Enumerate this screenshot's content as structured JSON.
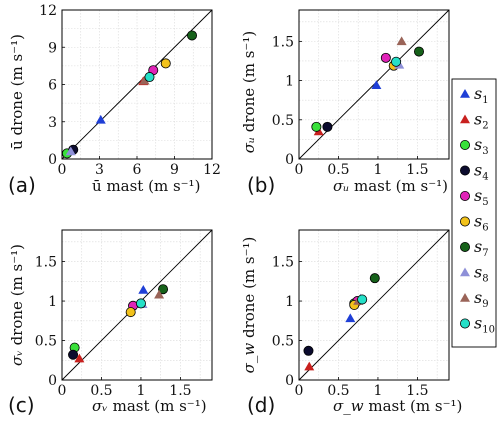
{
  "series_styles": [
    {
      "name": "s",
      "sub": "1",
      "marker": "triangle",
      "color": "#1f3fd6"
    },
    {
      "name": "s",
      "sub": "2",
      "marker": "triangle",
      "color": "#c8201e"
    },
    {
      "name": "s",
      "sub": "3",
      "marker": "circle",
      "color": "#39e03a"
    },
    {
      "name": "s",
      "sub": "4",
      "marker": "circle",
      "color": "#0b0b2e"
    },
    {
      "name": "s",
      "sub": "5",
      "marker": "circle",
      "color": "#e023b8"
    },
    {
      "name": "s",
      "sub": "6",
      "marker": "circle",
      "color": "#f2c21b"
    },
    {
      "name": "s",
      "sub": "7",
      "marker": "circle",
      "color": "#16611a"
    },
    {
      "name": "s",
      "sub": "8",
      "marker": "triangle",
      "color": "#8e90d8"
    },
    {
      "name": "s",
      "sub": "9",
      "marker": "triangle",
      "color": "#9a6458"
    },
    {
      "name": "s",
      "sub": "10",
      "marker": "circle",
      "color": "#25e0c8"
    }
  ],
  "chart_data": [
    {
      "panel": "(a)",
      "type": "scatter",
      "xlabel": {
        "prefix": "ū",
        "italic": "",
        "suffix": " mast (m s⁻¹)"
      },
      "ylabel": {
        "prefix": "ū",
        "italic": "",
        "suffix": " drone (m s⁻¹)"
      },
      "xlim": [
        0,
        12
      ],
      "ylim": [
        0,
        12
      ],
      "xticks": [
        0,
        3,
        6,
        9,
        12
      ],
      "yticks": [
        0,
        3,
        6,
        9,
        12
      ],
      "xtick_labels": [
        "0",
        "3",
        "6",
        "9",
        "12"
      ],
      "ytick_labels": [
        "0",
        "3",
        "6",
        "9",
        "12"
      ],
      "grid": true,
      "reference_line": "1:1",
      "points": [
        [
          3.1,
          3.15
        ],
        [
          6.5,
          6.25
        ],
        [
          0.4,
          0.45
        ],
        [
          0.9,
          0.75
        ],
        [
          7.3,
          7.15
        ],
        [
          8.3,
          7.7
        ],
        [
          10.4,
          9.95
        ],
        [
          0.7,
          0.6
        ],
        [
          6.6,
          6.3
        ],
        [
          7.0,
          6.6
        ]
      ]
    },
    {
      "panel": "(b)",
      "type": "scatter",
      "xlabel": {
        "prefix": "",
        "italic": "σᵤ",
        "suffix": " mast (m s⁻¹)"
      },
      "ylabel": {
        "prefix": "",
        "italic": "σᵤ",
        "suffix": " drone (m s⁻¹)"
      },
      "xlim": [
        0,
        1.9
      ],
      "ylim": [
        0,
        1.9
      ],
      "xticks": [
        0,
        0.5,
        1,
        1.5
      ],
      "yticks": [
        0,
        0.5,
        1,
        1.5
      ],
      "xtick_labels": [
        "0",
        "0.5",
        "1",
        "1.5"
      ],
      "ytick_labels": [
        "0",
        "0.5",
        "1",
        "1.5"
      ],
      "grid": true,
      "reference_line": "1:1",
      "points": [
        [
          0.98,
          0.94
        ],
        [
          0.25,
          0.35
        ],
        [
          0.22,
          0.41
        ],
        [
          0.36,
          0.41
        ],
        [
          1.1,
          1.29
        ],
        [
          1.2,
          1.19
        ],
        [
          1.52,
          1.37
        ],
        [
          1.27,
          1.2
        ],
        [
          1.3,
          1.5
        ],
        [
          1.23,
          1.24
        ]
      ]
    },
    {
      "panel": "(c)",
      "type": "scatter",
      "xlabel": {
        "prefix": "",
        "italic": "σᵥ",
        "suffix": " mast (m s⁻¹)"
      },
      "ylabel": {
        "prefix": "",
        "italic": "σᵥ",
        "suffix": " drone (m s⁻¹)"
      },
      "xlim": [
        0,
        1.9
      ],
      "ylim": [
        0,
        1.9
      ],
      "xticks": [
        0,
        0.5,
        1,
        1.5
      ],
      "yticks": [
        0,
        0.5,
        1,
        1.5
      ],
      "xtick_labels": [
        "0",
        "0.5",
        "1",
        "1.5"
      ],
      "ytick_labels": [
        "0",
        "0.5",
        "1",
        "1.5"
      ],
      "grid": true,
      "reference_line": "1:1",
      "points": [
        [
          1.03,
          1.14
        ],
        [
          0.22,
          0.27
        ],
        [
          0.16,
          0.41
        ],
        [
          0.14,
          0.32
        ],
        [
          0.9,
          0.94
        ],
        [
          0.87,
          0.86
        ],
        [
          1.28,
          1.15
        ],
        [
          1.02,
          0.96
        ],
        [
          1.23,
          1.08
        ],
        [
          1.0,
          0.97
        ]
      ]
    },
    {
      "panel": "(d)",
      "type": "scatter",
      "xlabel": {
        "prefix": "",
        "italic": "σ_w",
        "suffix": " mast (m s⁻¹)"
      },
      "ylabel": {
        "prefix": "",
        "italic": "σ_w",
        "suffix": " drone (m s⁻¹)"
      },
      "xlim": [
        0,
        1.9
      ],
      "ylim": [
        0,
        1.9
      ],
      "xticks": [
        0,
        0.5,
        1,
        1.5
      ],
      "yticks": [
        0,
        0.5,
        1,
        1.5
      ],
      "xtick_labels": [
        "0",
        "0.5",
        "1",
        "1.5"
      ],
      "ytick_labels": [
        "0",
        "0.5",
        "1",
        "1.5"
      ],
      "grid": true,
      "reference_line": "1:1",
      "points": [
        [
          0.65,
          0.78
        ],
        [
          0.13,
          0.17
        ],
        [
          0.7,
          0.97
        ],
        [
          0.12,
          0.37
        ],
        [
          0.74,
          1.0
        ],
        [
          0.7,
          0.95
        ],
        [
          0.96,
          1.29
        ],
        [
          0.78,
          1.03
        ],
        [
          0.75,
          1.0
        ],
        [
          0.8,
          1.02
        ]
      ]
    }
  ]
}
